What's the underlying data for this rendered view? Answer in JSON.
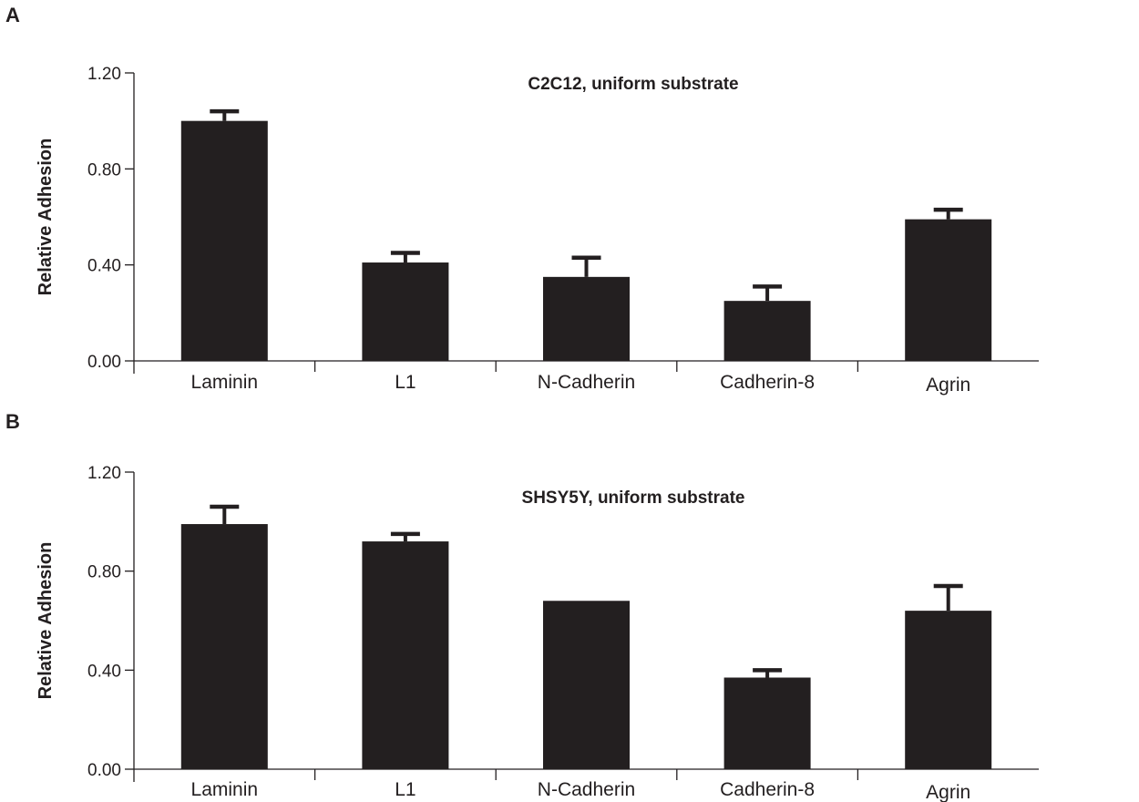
{
  "panels": {
    "a": {
      "letter": "A"
    },
    "b": {
      "letter": "B"
    }
  },
  "chart_data": [
    {
      "type": "bar",
      "title": "C2C12, uniform substrate",
      "xlabel": "",
      "ylabel": "Relative Adhesion",
      "ylim": [
        0,
        1.2
      ],
      "yticks": [
        "0.00",
        "0.40",
        "0.80",
        "1.20"
      ],
      "categories": [
        "Laminin",
        "L1",
        "N-Cadherin",
        "Cadherin-8",
        "Agrin"
      ],
      "values": [
        1.0,
        0.41,
        0.35,
        0.25,
        0.59
      ],
      "error_upper": [
        0.04,
        0.04,
        0.08,
        0.06,
        0.04
      ],
      "bar_color": "#231f20",
      "grid": false
    },
    {
      "type": "bar",
      "title": "SHSY5Y, uniform substrate",
      "xlabel": "",
      "ylabel": "Relative Adhesion",
      "ylim": [
        0,
        1.2
      ],
      "yticks": [
        "0.00",
        "0.40",
        "0.80",
        "1.20"
      ],
      "categories": [
        "Laminin",
        "L1",
        "N-Cadherin",
        "Cadherin-8",
        "Agrin"
      ],
      "values": [
        0.99,
        0.92,
        0.68,
        0.37,
        0.64
      ],
      "error_upper": [
        0.07,
        0.03,
        0.0,
        0.03,
        0.1
      ],
      "bar_color": "#231f20",
      "grid": false
    }
  ]
}
